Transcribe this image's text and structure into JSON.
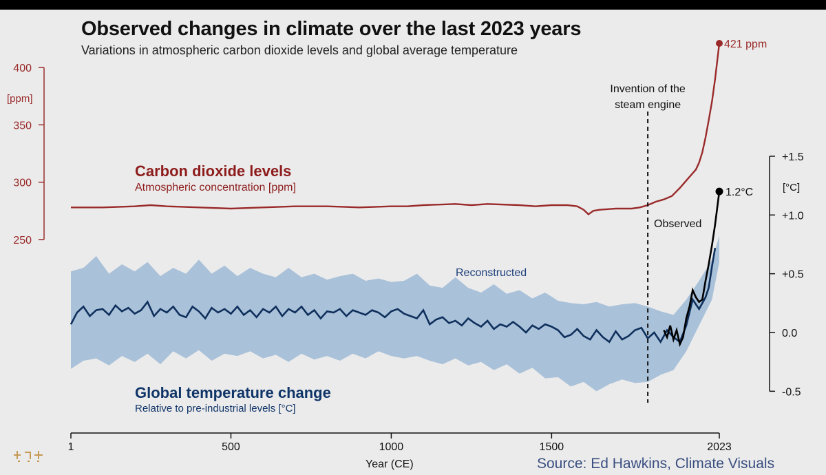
{
  "title": "Observed changes in climate over the last 2023 years",
  "subtitle": "Variations in atmospheric carbon dioxide levels and global average temperature",
  "source": "Source: Ed Hawkins, Climate Visuals",
  "colors": {
    "co2": "#9a2a2a",
    "temp": "#0f2f5c",
    "band": "#a9c1d9",
    "observed": "#000000",
    "background": "#ebebeb"
  },
  "chart_data": {
    "type": "line",
    "xlabel": "Year (CE)",
    "x_ticks": [
      1,
      500,
      1000,
      1500,
      2023
    ],
    "x_tick_labels": [
      "1",
      "500",
      "1000",
      "1500",
      "2023"
    ],
    "xlim": [
      1,
      2023
    ],
    "annotations": {
      "steam_engine": {
        "text_line1": "Invention of the",
        "text_line2": "steam engine",
        "year": 1800
      }
    },
    "co2": {
      "name": "Carbon dioxide levels",
      "description": "Atmospheric concentration [ppm]",
      "unit_label": "[ppm]",
      "ylim": [
        250,
        400
      ],
      "y_ticks": [
        250,
        300,
        350,
        400
      ],
      "end_label": "421 ppm",
      "points": [
        [
          1,
          278
        ],
        [
          100,
          278
        ],
        [
          200,
          279
        ],
        [
          250,
          280
        ],
        [
          300,
          279
        ],
        [
          400,
          278
        ],
        [
          500,
          277
        ],
        [
          600,
          278
        ],
        [
          700,
          279
        ],
        [
          800,
          279
        ],
        [
          900,
          278
        ],
        [
          1000,
          279
        ],
        [
          1050,
          279
        ],
        [
          1100,
          280
        ],
        [
          1200,
          281
        ],
        [
          1250,
          280
        ],
        [
          1300,
          281
        ],
        [
          1400,
          280
        ],
        [
          1450,
          279
        ],
        [
          1500,
          280
        ],
        [
          1550,
          280
        ],
        [
          1580,
          279
        ],
        [
          1600,
          276
        ],
        [
          1615,
          272
        ],
        [
          1630,
          275
        ],
        [
          1650,
          276
        ],
        [
          1700,
          277
        ],
        [
          1750,
          277
        ],
        [
          1775,
          278
        ],
        [
          1800,
          280
        ],
        [
          1825,
          283
        ],
        [
          1850,
          285
        ],
        [
          1875,
          288
        ],
        [
          1900,
          295
        ],
        [
          1925,
          303
        ],
        [
          1950,
          311
        ],
        [
          1960,
          317
        ],
        [
          1970,
          326
        ],
        [
          1980,
          339
        ],
        [
          1990,
          354
        ],
        [
          2000,
          370
        ],
        [
          2010,
          390
        ],
        [
          2023,
          421
        ]
      ]
    },
    "temperature": {
      "name": "Global temperature change",
      "description": "Relative to pre-industrial levels [°C]",
      "unit_label": "[°C]",
      "ylim": [
        -0.5,
        1.5
      ],
      "y_ticks": [
        -0.5,
        0.0,
        0.5,
        1.0,
        1.5
      ],
      "y_tick_labels": [
        "-0.5",
        "0.0",
        "+0.5",
        "+1.0",
        "+1.5"
      ],
      "reconstructed_label": "Reconstructed",
      "observed_label": "Observed",
      "end_label": "1.2°C",
      "reconstructed": [
        [
          1,
          0.07
        ],
        [
          20,
          0.17
        ],
        [
          40,
          0.22
        ],
        [
          60,
          0.14
        ],
        [
          80,
          0.19
        ],
        [
          100,
          0.2
        ],
        [
          120,
          0.15
        ],
        [
          140,
          0.23
        ],
        [
          160,
          0.18
        ],
        [
          180,
          0.21
        ],
        [
          200,
          0.16
        ],
        [
          220,
          0.19
        ],
        [
          240,
          0.26
        ],
        [
          260,
          0.14
        ],
        [
          280,
          0.2
        ],
        [
          300,
          0.17
        ],
        [
          320,
          0.22
        ],
        [
          340,
          0.15
        ],
        [
          360,
          0.13
        ],
        [
          380,
          0.22
        ],
        [
          400,
          0.18
        ],
        [
          420,
          0.12
        ],
        [
          440,
          0.21
        ],
        [
          460,
          0.17
        ],
        [
          480,
          0.2
        ],
        [
          500,
          0.16
        ],
        [
          520,
          0.22
        ],
        [
          540,
          0.15
        ],
        [
          560,
          0.19
        ],
        [
          580,
          0.13
        ],
        [
          600,
          0.2
        ],
        [
          620,
          0.17
        ],
        [
          640,
          0.22
        ],
        [
          660,
          0.14
        ],
        [
          680,
          0.2
        ],
        [
          700,
          0.17
        ],
        [
          720,
          0.22
        ],
        [
          740,
          0.15
        ],
        [
          760,
          0.19
        ],
        [
          780,
          0.12
        ],
        [
          800,
          0.18
        ],
        [
          820,
          0.17
        ],
        [
          840,
          0.2
        ],
        [
          860,
          0.14
        ],
        [
          880,
          0.19
        ],
        [
          900,
          0.17
        ],
        [
          920,
          0.15
        ],
        [
          940,
          0.19
        ],
        [
          960,
          0.17
        ],
        [
          980,
          0.13
        ],
        [
          1000,
          0.18
        ],
        [
          1020,
          0.2
        ],
        [
          1040,
          0.16
        ],
        [
          1060,
          0.14
        ],
        [
          1080,
          0.12
        ],
        [
          1100,
          0.19
        ],
        [
          1120,
          0.07
        ],
        [
          1140,
          0.11
        ],
        [
          1160,
          0.13
        ],
        [
          1180,
          0.08
        ],
        [
          1200,
          0.1
        ],
        [
          1220,
          0.06
        ],
        [
          1240,
          0.12
        ],
        [
          1260,
          0.08
        ],
        [
          1280,
          0.05
        ],
        [
          1300,
          0.1
        ],
        [
          1320,
          0.03
        ],
        [
          1340,
          0.07
        ],
        [
          1360,
          0.05
        ],
        [
          1380,
          0.09
        ],
        [
          1400,
          0.05
        ],
        [
          1420,
          0.0
        ],
        [
          1440,
          0.06
        ],
        [
          1460,
          0.03
        ],
        [
          1480,
          0.07
        ],
        [
          1500,
          0.05
        ],
        [
          1520,
          0.02
        ],
        [
          1540,
          -0.04
        ],
        [
          1560,
          -0.02
        ],
        [
          1580,
          0.03
        ],
        [
          1600,
          -0.03
        ],
        [
          1620,
          -0.06
        ],
        [
          1640,
          0.02
        ],
        [
          1660,
          -0.04
        ],
        [
          1680,
          -0.08
        ],
        [
          1700,
          0.01
        ],
        [
          1720,
          -0.06
        ],
        [
          1740,
          -0.03
        ],
        [
          1760,
          0.02
        ],
        [
          1780,
          0.04
        ],
        [
          1800,
          -0.05
        ],
        [
          1820,
          0.0
        ],
        [
          1840,
          -0.08
        ],
        [
          1860,
          0.02
        ],
        [
          1880,
          -0.04
        ],
        [
          1900,
          -0.08
        ],
        [
          1920,
          0.06
        ],
        [
          1940,
          0.28
        ],
        [
          1960,
          0.2
        ],
        [
          1980,
          0.3
        ],
        [
          1990,
          0.38
        ],
        [
          2000,
          0.56
        ],
        [
          2010,
          0.72
        ]
      ],
      "band_upper": [
        [
          1,
          0.52
        ],
        [
          40,
          0.55
        ],
        [
          80,
          0.65
        ],
        [
          120,
          0.5
        ],
        [
          160,
          0.58
        ],
        [
          200,
          0.52
        ],
        [
          240,
          0.6
        ],
        [
          280,
          0.48
        ],
        [
          320,
          0.55
        ],
        [
          360,
          0.5
        ],
        [
          400,
          0.62
        ],
        [
          440,
          0.5
        ],
        [
          480,
          0.57
        ],
        [
          520,
          0.48
        ],
        [
          560,
          0.55
        ],
        [
          600,
          0.5
        ],
        [
          640,
          0.47
        ],
        [
          680,
          0.55
        ],
        [
          720,
          0.47
        ],
        [
          760,
          0.5
        ],
        [
          800,
          0.45
        ],
        [
          840,
          0.48
        ],
        [
          880,
          0.5
        ],
        [
          920,
          0.44
        ],
        [
          960,
          0.46
        ],
        [
          1000,
          0.43
        ],
        [
          1040,
          0.44
        ],
        [
          1080,
          0.5
        ],
        [
          1120,
          0.4
        ],
        [
          1160,
          0.38
        ],
        [
          1200,
          0.47
        ],
        [
          1240,
          0.38
        ],
        [
          1280,
          0.34
        ],
        [
          1320,
          0.41
        ],
        [
          1360,
          0.33
        ],
        [
          1400,
          0.36
        ],
        [
          1440,
          0.29
        ],
        [
          1480,
          0.34
        ],
        [
          1520,
          0.27
        ],
        [
          1560,
          0.25
        ],
        [
          1600,
          0.24
        ],
        [
          1640,
          0.26
        ],
        [
          1680,
          0.22
        ],
        [
          1720,
          0.24
        ],
        [
          1760,
          0.25
        ],
        [
          1800,
          0.22
        ],
        [
          1840,
          0.18
        ],
        [
          1880,
          0.15
        ],
        [
          1920,
          0.28
        ],
        [
          1960,
          0.44
        ],
        [
          2000,
          0.62
        ],
        [
          2023,
          0.82
        ]
      ],
      "band_lower": [
        [
          1,
          -0.31
        ],
        [
          40,
          -0.24
        ],
        [
          80,
          -0.22
        ],
        [
          120,
          -0.28
        ],
        [
          160,
          -0.2
        ],
        [
          200,
          -0.25
        ],
        [
          240,
          -0.18
        ],
        [
          280,
          -0.27
        ],
        [
          320,
          -0.16
        ],
        [
          360,
          -0.22
        ],
        [
          400,
          -0.15
        ],
        [
          440,
          -0.24
        ],
        [
          480,
          -0.18
        ],
        [
          520,
          -0.2
        ],
        [
          560,
          -0.16
        ],
        [
          600,
          -0.22
        ],
        [
          640,
          -0.19
        ],
        [
          680,
          -0.25
        ],
        [
          720,
          -0.18
        ],
        [
          760,
          -0.23
        ],
        [
          800,
          -0.2
        ],
        [
          840,
          -0.24
        ],
        [
          880,
          -0.18
        ],
        [
          920,
          -0.22
        ],
        [
          960,
          -0.16
        ],
        [
          1000,
          -0.2
        ],
        [
          1040,
          -0.22
        ],
        [
          1080,
          -0.2
        ],
        [
          1120,
          -0.24
        ],
        [
          1160,
          -0.27
        ],
        [
          1200,
          -0.22
        ],
        [
          1240,
          -0.28
        ],
        [
          1280,
          -0.25
        ],
        [
          1320,
          -0.32
        ],
        [
          1360,
          -0.27
        ],
        [
          1400,
          -0.35
        ],
        [
          1440,
          -0.3
        ],
        [
          1480,
          -0.39
        ],
        [
          1520,
          -0.38
        ],
        [
          1560,
          -0.46
        ],
        [
          1600,
          -0.42
        ],
        [
          1640,
          -0.5
        ],
        [
          1680,
          -0.44
        ],
        [
          1720,
          -0.4
        ],
        [
          1760,
          -0.43
        ],
        [
          1800,
          -0.42
        ],
        [
          1840,
          -0.36
        ],
        [
          1880,
          -0.32
        ],
        [
          1920,
          -0.16
        ],
        [
          1960,
          0.06
        ],
        [
          2000,
          0.28
        ],
        [
          2023,
          0.6
        ]
      ],
      "observed": [
        [
          1850,
          0.02
        ],
        [
          1860,
          -0.04
        ],
        [
          1870,
          0.06
        ],
        [
          1880,
          -0.06
        ],
        [
          1890,
          0.02
        ],
        [
          1900,
          -0.1
        ],
        [
          1910,
          -0.04
        ],
        [
          1920,
          0.12
        ],
        [
          1930,
          0.22
        ],
        [
          1940,
          0.36
        ],
        [
          1950,
          0.3
        ],
        [
          1960,
          0.26
        ],
        [
          1970,
          0.28
        ],
        [
          1980,
          0.44
        ],
        [
          1990,
          0.58
        ],
        [
          2000,
          0.74
        ],
        [
          2010,
          0.92
        ],
        [
          2023,
          1.2
        ]
      ]
    }
  }
}
